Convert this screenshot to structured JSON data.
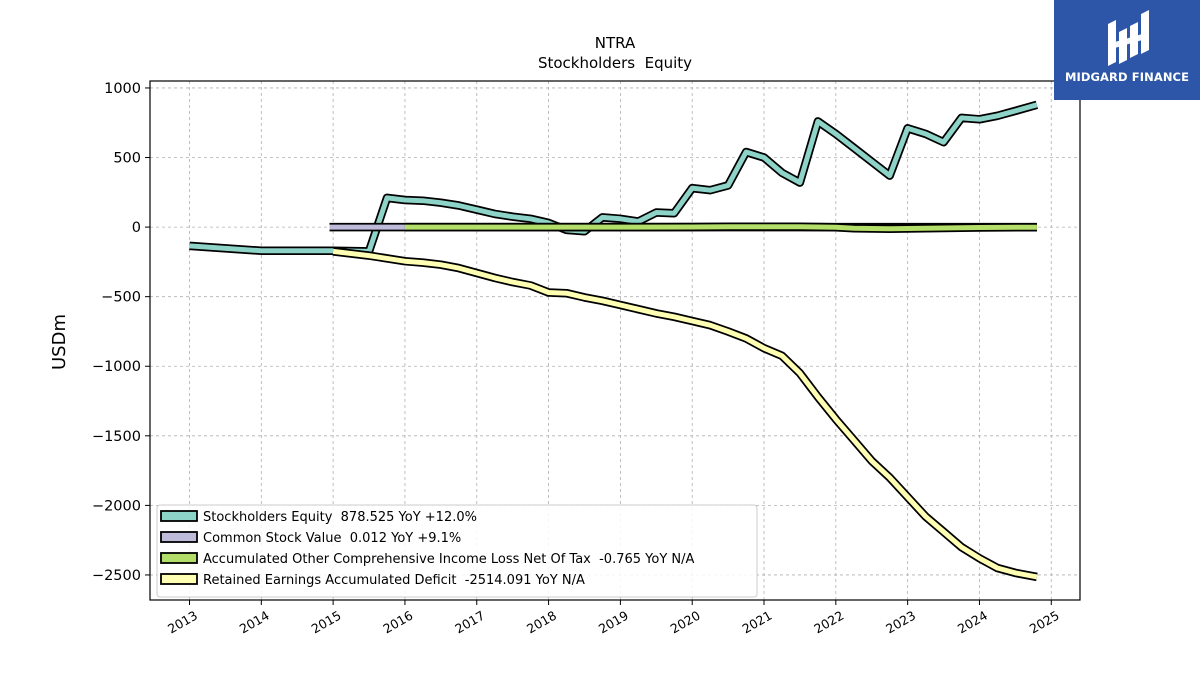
{
  "chart_data": {
    "type": "line",
    "title": "NTRA",
    "subtitle": "Stockholders  Equity",
    "ylabel": "USDm",
    "xlabel": "",
    "xlim": [
      2012.45,
      2025.4
    ],
    "ylim": [
      -2680,
      1050
    ],
    "yticks": [
      1000,
      500,
      0,
      -500,
      -1000,
      -1500,
      -2000,
      -2500
    ],
    "ytick_labels": [
      "1000",
      "500",
      "0",
      "−500",
      "−1000",
      "−1500",
      "−2000",
      "−2500"
    ],
    "xticks": [
      2013,
      2014,
      2015,
      2016,
      2017,
      2018,
      2019,
      2020,
      2021,
      2022,
      2023,
      2024,
      2025
    ],
    "xtick_labels": [
      "2013",
      "2014",
      "2015",
      "2016",
      "2017",
      "2018",
      "2019",
      "2020",
      "2021",
      "2022",
      "2023",
      "2024",
      "2025"
    ],
    "grid": true,
    "legend_position": "lower-left",
    "series": [
      {
        "name": "Stockholders Equity",
        "legend_label": "Stockholders Equity  878.525 YoY +12.0%",
        "color": "#8dd3c7",
        "points": [
          [
            2013.0,
            -135
          ],
          [
            2014.0,
            -170
          ],
          [
            2015.0,
            -170
          ],
          [
            2015.5,
            -175
          ],
          [
            2015.75,
            210
          ],
          [
            2016.0,
            195
          ],
          [
            2016.25,
            190
          ],
          [
            2016.5,
            175
          ],
          [
            2016.75,
            155
          ],
          [
            2017.0,
            125
          ],
          [
            2017.25,
            95
          ],
          [
            2017.5,
            75
          ],
          [
            2017.75,
            60
          ],
          [
            2018.0,
            30
          ],
          [
            2018.25,
            -20
          ],
          [
            2018.5,
            -30
          ],
          [
            2018.75,
            70
          ],
          [
            2019.0,
            60
          ],
          [
            2019.25,
            40
          ],
          [
            2019.5,
            105
          ],
          [
            2019.75,
            100
          ],
          [
            2020.0,
            280
          ],
          [
            2020.25,
            265
          ],
          [
            2020.5,
            300
          ],
          [
            2020.75,
            540
          ],
          [
            2021.0,
            500
          ],
          [
            2021.25,
            390
          ],
          [
            2021.5,
            320
          ],
          [
            2021.75,
            760
          ],
          [
            2022.0,
            670
          ],
          [
            2022.25,
            570
          ],
          [
            2022.5,
            470
          ],
          [
            2022.75,
            370
          ],
          [
            2023.0,
            710
          ],
          [
            2023.25,
            670
          ],
          [
            2023.5,
            610
          ],
          [
            2023.75,
            785
          ],
          [
            2024.0,
            775
          ],
          [
            2024.25,
            800
          ],
          [
            2024.5,
            835
          ],
          [
            2024.8,
            879
          ]
        ]
      },
      {
        "name": "Common Stock Value",
        "legend_label": "Common Stock Value  0.012 YoY +9.1%",
        "color": "#bebada",
        "points": [
          [
            2014.95,
            0
          ],
          [
            2016.0,
            0
          ],
          [
            2024.8,
            0
          ]
        ]
      },
      {
        "name": "Accumulated Other Comprehensive Income Loss Net Of Tax",
        "legend_label": "Accumulated Other Comprehensive Income Loss Net Of Tax  -0.765 YoY N/A",
        "color": "#b3de69",
        "points": [
          [
            2016.0,
            0
          ],
          [
            2017.0,
            0
          ],
          [
            2018.0,
            0
          ],
          [
            2019.0,
            0
          ],
          [
            2020.0,
            1
          ],
          [
            2020.5,
            3
          ],
          [
            2021.0,
            3
          ],
          [
            2021.5,
            2
          ],
          [
            2022.0,
            -1
          ],
          [
            2022.25,
            -8
          ],
          [
            2022.75,
            -12
          ],
          [
            2023.25,
            -8
          ],
          [
            2024.0,
            -3
          ],
          [
            2024.8,
            -1
          ]
        ]
      },
      {
        "name": "Retained Earnings Accumulated Deficit",
        "legend_label": "Retained Earnings Accumulated Deficit  -2514.091 YoY N/A",
        "color": "#ffffb3",
        "points": [
          [
            2015.0,
            -175
          ],
          [
            2015.5,
            -205
          ],
          [
            2016.0,
            -245
          ],
          [
            2016.25,
            -255
          ],
          [
            2016.5,
            -270
          ],
          [
            2016.75,
            -295
          ],
          [
            2017.0,
            -330
          ],
          [
            2017.25,
            -365
          ],
          [
            2017.5,
            -395
          ],
          [
            2017.75,
            -420
          ],
          [
            2018.0,
            -470
          ],
          [
            2018.25,
            -475
          ],
          [
            2018.5,
            -505
          ],
          [
            2018.75,
            -530
          ],
          [
            2019.0,
            -560
          ],
          [
            2019.25,
            -590
          ],
          [
            2019.5,
            -620
          ],
          [
            2019.75,
            -645
          ],
          [
            2020.0,
            -675
          ],
          [
            2020.25,
            -705
          ],
          [
            2020.5,
            -750
          ],
          [
            2020.75,
            -800
          ],
          [
            2021.0,
            -870
          ],
          [
            2021.25,
            -925
          ],
          [
            2021.5,
            -1050
          ],
          [
            2021.75,
            -1220
          ],
          [
            2022.0,
            -1380
          ],
          [
            2022.25,
            -1530
          ],
          [
            2022.5,
            -1680
          ],
          [
            2022.75,
            -1800
          ],
          [
            2023.0,
            -1940
          ],
          [
            2023.25,
            -2080
          ],
          [
            2023.5,
            -2190
          ],
          [
            2023.75,
            -2300
          ],
          [
            2024.0,
            -2380
          ],
          [
            2024.25,
            -2450
          ],
          [
            2024.5,
            -2485
          ],
          [
            2024.8,
            -2514
          ]
        ]
      }
    ]
  },
  "logo": {
    "text": "MIDGARD FINANCE",
    "bg_color": "#2d56a8",
    "text_color": "#ffffff",
    "icon": "midgard-monogram-icon"
  }
}
